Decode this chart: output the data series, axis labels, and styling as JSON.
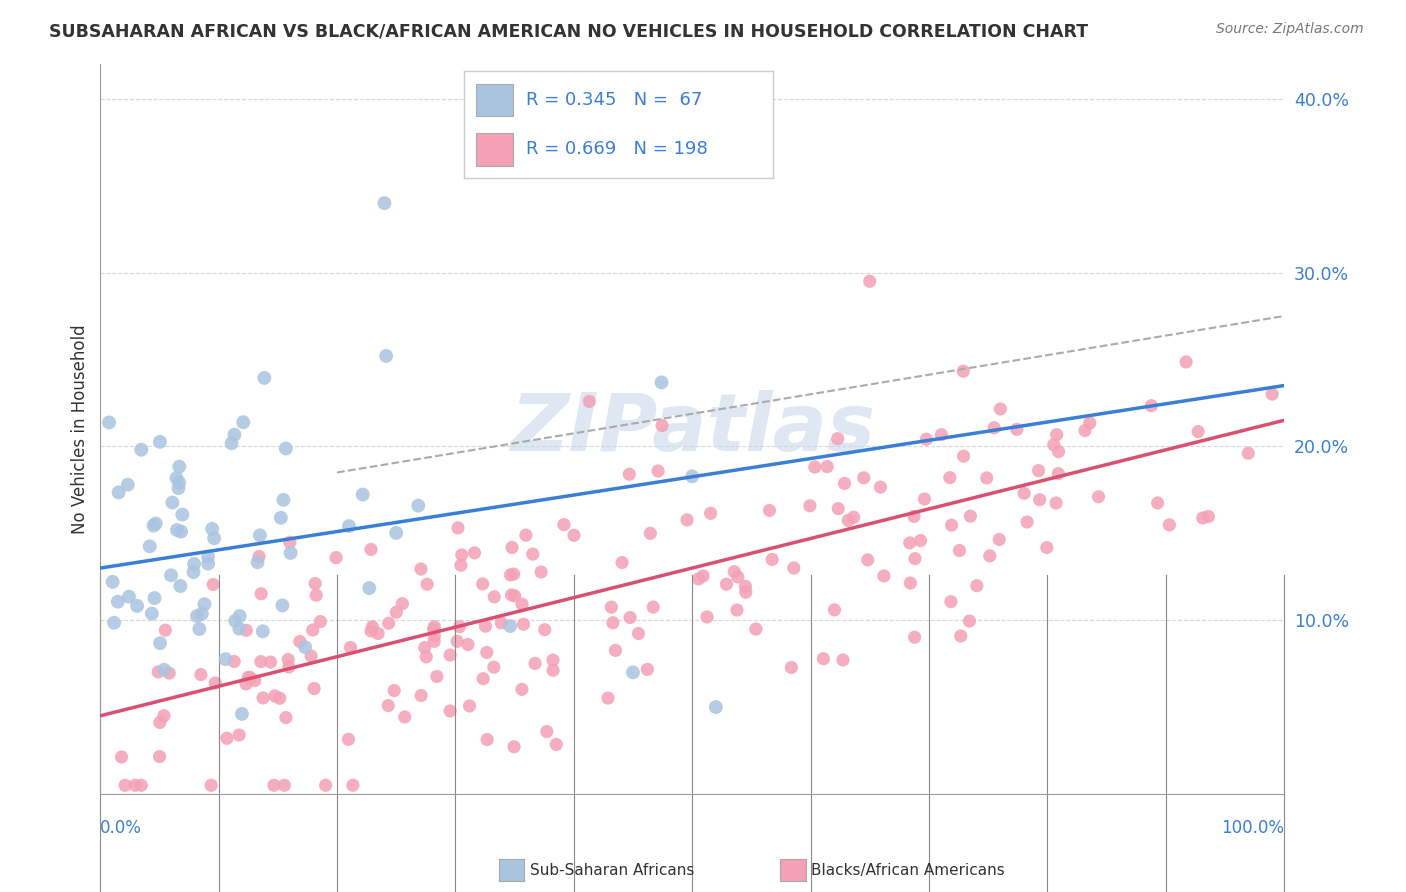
{
  "title": "SUBSAHARAN AFRICAN VS BLACK/AFRICAN AMERICAN NO VEHICLES IN HOUSEHOLD CORRELATION CHART",
  "source": "Source: ZipAtlas.com",
  "ylabel": "No Vehicles in Household",
  "xlim": [
    0,
    100
  ],
  "ylim": [
    0,
    42
  ],
  "yticks": [
    10,
    20,
    30,
    40
  ],
  "ytick_labels": [
    "10.0%",
    "20.0%",
    "30.0%",
    "40.0%"
  ],
  "color_blue": "#aac4e0",
  "color_pink": "#f4a0b5",
  "line_blue": "#3b7fd4",
  "line_pink": "#d95070",
  "line_gray": "#aaaaaa",
  "background_color": "#ffffff",
  "grid_color": "#d8d8d8",
  "blue_r": 0.345,
  "blue_n": 67,
  "pink_r": 0.669,
  "pink_n": 198,
  "blue_line_x0": 0,
  "blue_line_y0": 13.0,
  "blue_line_x1": 100,
  "blue_line_y1": 23.5,
  "pink_line_x0": 0,
  "pink_line_y0": 4.5,
  "pink_line_x1": 100,
  "pink_line_y1": 21.5,
  "gray_line_x0": 20,
  "gray_line_y0": 18.5,
  "gray_line_x1": 100,
  "gray_line_y1": 27.5,
  "watermark_text": "ZIPatlas",
  "watermark_color": "#c8d8ea",
  "watermark_alpha": 0.6
}
